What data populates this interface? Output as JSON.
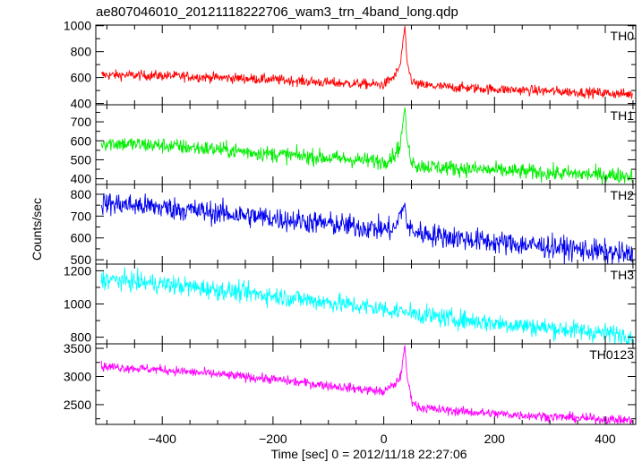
{
  "chart_data": {
    "type": "line",
    "title": "ae807046010_20121118222706_wam3_trn_4band_long.qdp",
    "xlabel": "Time [sec] 0 = 2012/11/18 22:27:06",
    "ylabel": "Counts/sec",
    "xlim": [
      -520,
      455
    ],
    "x_ticks": [
      -400,
      -200,
      0,
      200,
      400
    ],
    "x_tick_labels": [
      "−400",
      "−200",
      "0",
      "200",
      "400"
    ],
    "panels": [
      {
        "name": "TH0",
        "color": "#ff0000",
        "ylim": [
          390,
          1005
        ],
        "y_ticks": [
          400,
          600,
          800,
          1000
        ],
        "y_tick_labels": [
          "400",
          "600",
          "800",
          "1000"
        ],
        "x": [
          -510,
          -400,
          -300,
          -200,
          -100,
          0,
          10,
          20,
          30,
          38,
          42,
          50,
          60,
          100,
          200,
          300,
          400,
          450
        ],
        "values": [
          620,
          615,
          600,
          585,
          560,
          545,
          580,
          610,
          700,
          1000,
          720,
          580,
          545,
          530,
          510,
          495,
          480,
          470
        ],
        "noise": 28
      },
      {
        "name": "TH1",
        "color": "#00ee00",
        "ylim": [
          370,
          790
        ],
        "y_ticks": [
          400,
          500,
          600,
          700
        ],
        "y_tick_labels": [
          "400",
          "500",
          "600",
          "700"
        ],
        "x": [
          -510,
          -400,
          -300,
          -200,
          -100,
          0,
          10,
          20,
          30,
          38,
          42,
          50,
          60,
          100,
          200,
          300,
          400,
          450
        ],
        "values": [
          590,
          575,
          555,
          530,
          510,
          490,
          510,
          530,
          580,
          780,
          600,
          500,
          470,
          460,
          445,
          430,
          420,
          415
        ],
        "noise": 30
      },
      {
        "name": "TH2",
        "color": "#0000ee",
        "ylim": [
          480,
          845
        ],
        "y_ticks": [
          500,
          600,
          700,
          800
        ],
        "y_tick_labels": [
          "500",
          "600",
          "700",
          "800"
        ],
        "x": [
          -510,
          -400,
          -300,
          -200,
          -100,
          0,
          20,
          38,
          42,
          60,
          100,
          200,
          300,
          400,
          450
        ],
        "values": [
          760,
          740,
          715,
          690,
          665,
          640,
          640,
          760,
          650,
          625,
          610,
          580,
          560,
          535,
          520
        ],
        "noise": 38
      },
      {
        "name": "TH3",
        "color": "#00ffff",
        "ylim": [
          760,
          1240
        ],
        "y_ticks": [
          800,
          1000,
          1200
        ],
        "y_tick_labels": [
          "800",
          "1000",
          "1200"
        ],
        "x": [
          -510,
          -400,
          -300,
          -200,
          -100,
          0,
          40,
          100,
          200,
          300,
          400,
          450
        ],
        "values": [
          1150,
          1120,
          1085,
          1050,
          1010,
          970,
          950,
          920,
          885,
          855,
          825,
          810
        ],
        "noise": 42
      },
      {
        "name": "TH0123",
        "color": "#ff00ff",
        "ylim": [
          2150,
          3580
        ],
        "y_ticks": [
          2500,
          3000,
          3500
        ],
        "y_tick_labels": [
          "2500",
          "3000",
          "3500"
        ],
        "x": [
          -510,
          -400,
          -300,
          -200,
          -100,
          0,
          10,
          20,
          30,
          38,
          42,
          50,
          60,
          100,
          200,
          300,
          400,
          450
        ],
        "values": [
          3180,
          3120,
          3040,
          2950,
          2840,
          2730,
          2800,
          2860,
          2990,
          3550,
          3000,
          2600,
          2460,
          2410,
          2340,
          2290,
          2240,
          2220
        ],
        "noise": 60
      }
    ]
  }
}
